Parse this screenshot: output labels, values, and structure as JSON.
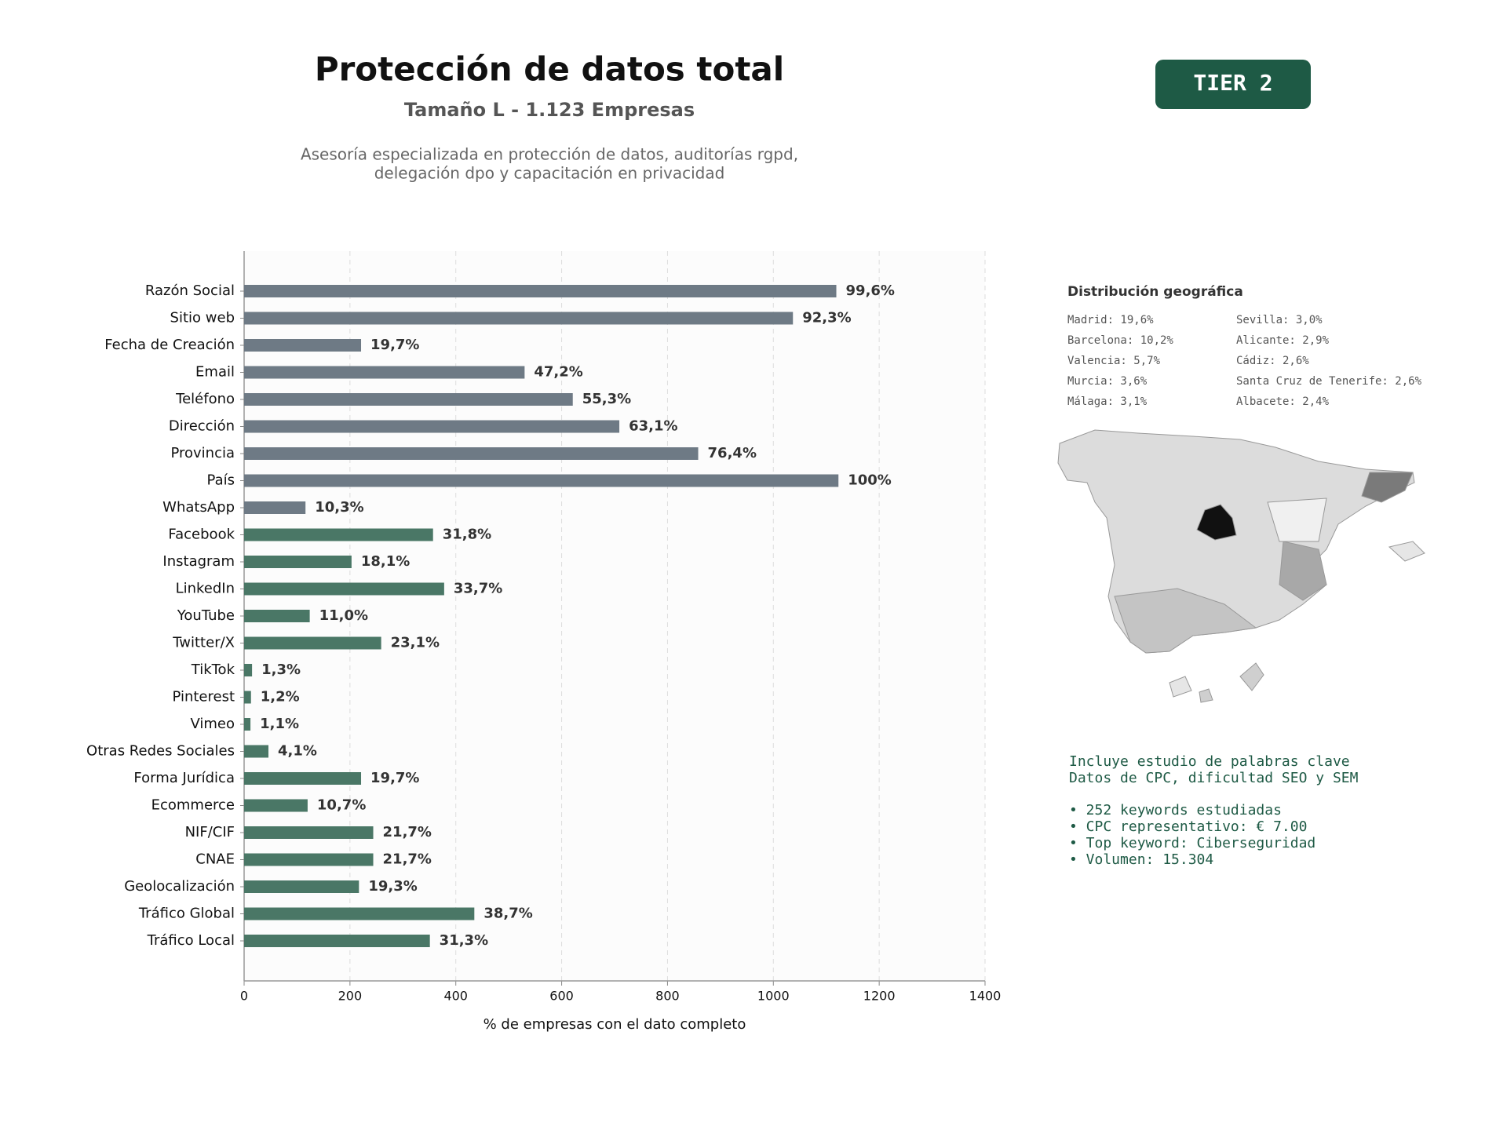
{
  "header": {
    "title": "Protección de datos total",
    "subtitle": "Tamaño L - 1.123 Empresas",
    "description": [
      "Asesoría especializada en protección de datos, auditorías rgpd,",
      "delegación dpo y capacitación en privacidad"
    ]
  },
  "badge": "TIER 2",
  "chart_data": {
    "type": "bar",
    "orientation": "horizontal",
    "categories": [
      "Razón Social",
      "Sitio web",
      "Fecha de Creación",
      "Email",
      "Teléfono",
      "Dirección",
      "Provincia",
      "País",
      "WhatsApp",
      "Facebook",
      "Instagram",
      "LinkedIn",
      "YouTube",
      "Twitter/X",
      "TikTok",
      "Pinterest",
      "Vimeo",
      "Otras Redes Sociales",
      "Forma Jurídica",
      "Ecommerce",
      "NIF/CIF",
      "CNAE",
      "Geolocalización",
      "Tráfico Global",
      "Tráfico Local"
    ],
    "values": [
      1119,
      1037,
      221,
      530,
      621,
      709,
      858,
      1123,
      116,
      357,
      203,
      378,
      124,
      259,
      15,
      13,
      12,
      46,
      221,
      120,
      244,
      244,
      217,
      435,
      351
    ],
    "value_labels": [
      "99,6%",
      "92,3%",
      "19,7%",
      "47,2%",
      "55,3%",
      "63,1%",
      "76,4%",
      "100%",
      "10,3%",
      "31,8%",
      "18,1%",
      "33,7%",
      "11,0%",
      "23,1%",
      "1,3%",
      "1,2%",
      "1,1%",
      "4,1%",
      "19,7%",
      "10,7%",
      "21,7%",
      "21,7%",
      "19,3%",
      "38,7%",
      "31,3%"
    ],
    "colors": [
      "#6e7a85",
      "#6e7a85",
      "#6e7a85",
      "#6e7a85",
      "#6e7a85",
      "#6e7a85",
      "#6e7a85",
      "#6e7a85",
      "#6e7a85",
      "#4a7766",
      "#4a7766",
      "#4a7766",
      "#4a7766",
      "#4a7766",
      "#4a7766",
      "#4a7766",
      "#4a7766",
      "#4a7766",
      "#4a7766",
      "#4a7766",
      "#4a7766",
      "#4a7766",
      "#4a7766",
      "#4a7766",
      "#4a7766"
    ],
    "xlim": [
      0,
      1400
    ],
    "xticks": [
      0,
      200,
      400,
      600,
      800,
      1000,
      1200,
      1400
    ],
    "xlabel": "% de empresas con el dato completo",
    "grid": true
  },
  "geo": {
    "title": "Distribución geográfica",
    "items": [
      "Madrid: 19,6%",
      "Barcelona: 10,2%",
      "Valencia: 5,7%",
      "Murcia: 3,6%",
      "Málaga: 3,1%",
      "Sevilla: 3,0%",
      "Alicante: 2,9%",
      "Cádiz: 2,6%",
      "Santa Cruz de Tenerife: 2,6%",
      "Albacete: 2,4%"
    ]
  },
  "keywords": [
    "Incluye estudio de palabras clave",
    "Datos de CPC, dificultad SEO y SEM",
    "• 252 keywords estudiadas",
    "• CPC representativo: € 7.00",
    "• Top keyword: Ciberseguridad",
    "• Volumen: 15.304"
  ]
}
